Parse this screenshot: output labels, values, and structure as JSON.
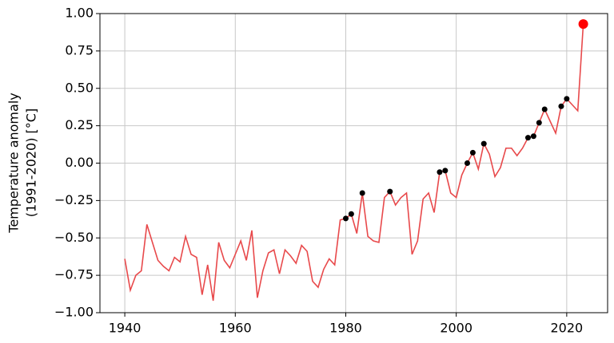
{
  "chart_data": {
    "type": "line",
    "ylabel": [
      "Temperature anomaly",
      "(1991-2020) [°C]"
    ],
    "x": [
      1940,
      1941,
      1942,
      1943,
      1944,
      1945,
      1946,
      1947,
      1948,
      1949,
      1950,
      1951,
      1952,
      1953,
      1954,
      1955,
      1956,
      1957,
      1958,
      1959,
      1960,
      1961,
      1962,
      1963,
      1964,
      1965,
      1966,
      1967,
      1968,
      1969,
      1970,
      1971,
      1972,
      1973,
      1974,
      1975,
      1976,
      1977,
      1978,
      1979,
      1980,
      1981,
      1982,
      1983,
      1984,
      1985,
      1986,
      1987,
      1988,
      1989,
      1990,
      1991,
      1992,
      1993,
      1994,
      1995,
      1996,
      1997,
      1998,
      1999,
      2000,
      2001,
      2002,
      2003,
      2004,
      2005,
      2006,
      2007,
      2008,
      2009,
      2010,
      2011,
      2012,
      2013,
      2014,
      2015,
      2016,
      2017,
      2018,
      2019,
      2020,
      2021,
      2022,
      2023
    ],
    "series": [
      {
        "color": "#e8494b",
        "values": [
          -0.64,
          -0.85,
          -0.75,
          -0.72,
          -0.41,
          -0.53,
          -0.65,
          -0.69,
          -0.72,
          -0.63,
          -0.66,
          -0.49,
          -0.61,
          -0.63,
          -0.88,
          -0.68,
          -0.92,
          -0.53,
          -0.65,
          -0.7,
          -0.61,
          -0.52,
          -0.65,
          -0.45,
          -0.9,
          -0.72,
          -0.6,
          -0.58,
          -0.74,
          -0.58,
          -0.62,
          -0.67,
          -0.55,
          -0.59,
          -0.79,
          -0.83,
          -0.71,
          -0.64,
          -0.68,
          -0.38,
          -0.37,
          -0.34,
          -0.47,
          -0.2,
          -0.49,
          -0.52,
          -0.53,
          -0.23,
          -0.19,
          -0.28,
          -0.23,
          -0.2,
          -0.61,
          -0.52,
          -0.24,
          -0.2,
          -0.33,
          -0.06,
          -0.05,
          -0.2,
          -0.23,
          -0.08,
          0.0,
          0.07,
          -0.04,
          0.13,
          0.06,
          -0.09,
          -0.03,
          0.1,
          0.1,
          0.05,
          0.1,
          0.17,
          0.18,
          0.27,
          0.36,
          0.28,
          0.2,
          0.38,
          0.43,
          0.39,
          0.35,
          0.93
        ]
      }
    ],
    "records": {
      "color": "#000000",
      "x": [
        1980,
        1981,
        1983,
        1988,
        1997,
        1998,
        2002,
        2003,
        2005,
        2013,
        2014,
        2015,
        2016,
        2019,
        2020
      ],
      "values": [
        -0.37,
        -0.34,
        -0.2,
        -0.19,
        -0.06,
        -0.05,
        0.0,
        0.07,
        0.13,
        0.17,
        0.18,
        0.27,
        0.36,
        0.38,
        0.43
      ]
    },
    "latest": {
      "color": "#ff0000",
      "x": 2023,
      "value": 0.93
    },
    "xlim": [
      1935.5,
      2027.4
    ],
    "ylim": [
      -1,
      1
    ],
    "xticks": [
      1940,
      1960,
      1980,
      2000,
      2020
    ],
    "yticks": [
      {
        "value": -1,
        "label": "−1.00"
      },
      {
        "value": -0.75,
        "label": "−0.75"
      },
      {
        "value": -0.5,
        "label": "−0.50"
      },
      {
        "value": -0.25,
        "label": "−0.25"
      },
      {
        "value": 0,
        "label": "0.00"
      },
      {
        "value": 0.25,
        "label": "0.25"
      },
      {
        "value": 0.5,
        "label": "0.50"
      },
      {
        "value": 0.75,
        "label": "0.75"
      },
      {
        "value": 1,
        "label": "1.00"
      }
    ],
    "grid": true
  }
}
